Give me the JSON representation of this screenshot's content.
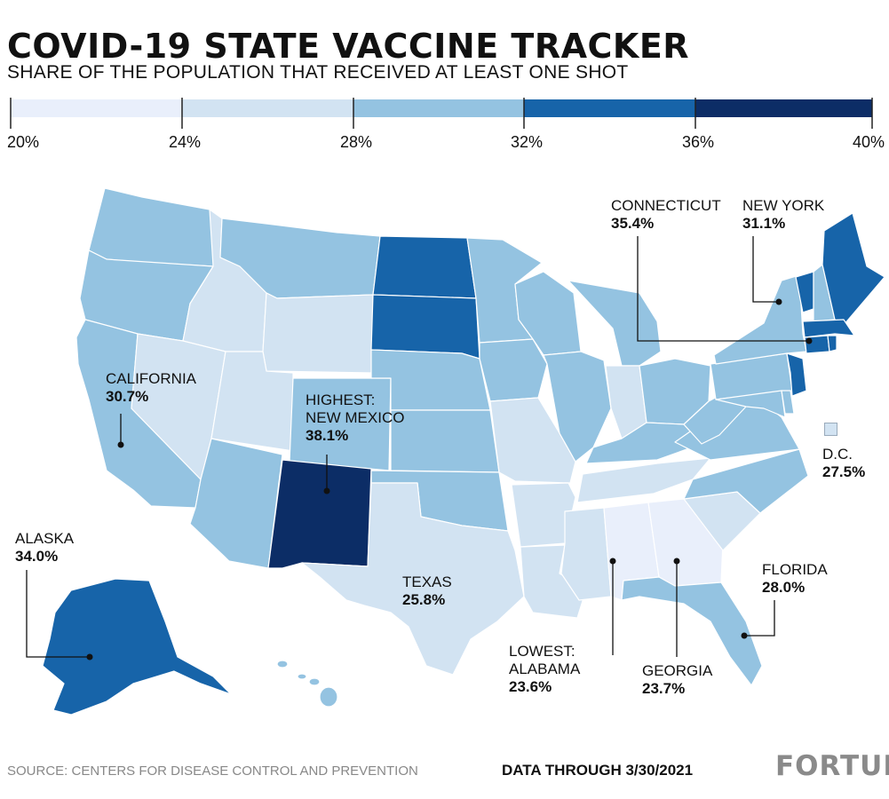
{
  "header": {
    "title": "COVID-19 STATE VACCINE TRACKER",
    "subtitle": "SHARE OF THE POPULATION THAT RECEIVED AT LEAST ONE SHOT"
  },
  "legend": {
    "ticks": [
      "20%",
      "24%",
      "28%",
      "32%",
      "36%",
      "40%"
    ],
    "colors": [
      "#e9effb",
      "#d2e3f2",
      "#94c3e1",
      "#1764a9",
      "#0c2d66"
    ]
  },
  "colors": {
    "bin1": "#e9effb",
    "bin2": "#d2e3f2",
    "bin3": "#94c3e1",
    "bin4": "#1764a9",
    "bin5": "#0c2d66",
    "border": "#ffffff",
    "leader": "#111111"
  },
  "callouts": {
    "california": {
      "name": "CALIFORNIA",
      "value": "30.7%"
    },
    "new_mexico": {
      "prefix": "HIGHEST:",
      "name": "NEW MEXICO",
      "value": "38.1%"
    },
    "alaska": {
      "name": "ALASKA",
      "value": "34.0%"
    },
    "texas": {
      "name": "TEXAS",
      "value": "25.8%"
    },
    "alabama": {
      "prefix": "LOWEST:",
      "name": "ALABAMA",
      "value": "23.6%"
    },
    "georgia": {
      "name": "GEORGIA",
      "value": "23.7%"
    },
    "florida": {
      "name": "FLORIDA",
      "value": "28.0%"
    },
    "dc": {
      "name": "D.C.",
      "value": "27.5%"
    },
    "connecticut": {
      "name": "CONNECTICUT",
      "value": "35.4%"
    },
    "new_york": {
      "name": "NEW YORK",
      "value": "31.1%"
    }
  },
  "footer": {
    "source": "SOURCE: CENTERS FOR DISEASE CONTROL AND PREVENTION",
    "date": "DATA THROUGH 3/30/2021",
    "logo": "FORTUNE"
  }
}
